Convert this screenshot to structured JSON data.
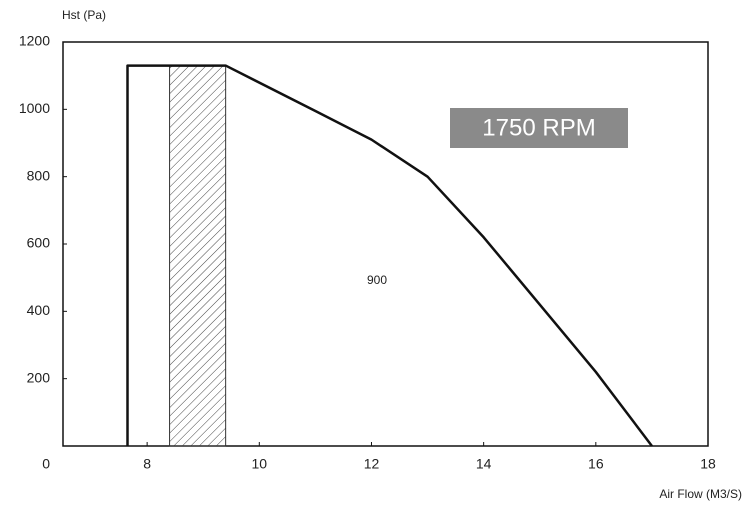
{
  "chart_data": {
    "type": "line",
    "y_label": "Hst (Pa)",
    "x_label": "Air Flow (M3/S)",
    "x": [
      7.65,
      7.65,
      9.4,
      11,
      12,
      13,
      14,
      15,
      16,
      17
    ],
    "series": [
      {
        "color": "#111111",
        "values": [
          0,
          1130,
          1130,
          995,
          910,
          800,
          620,
          420,
          220,
          0
        ]
      }
    ],
    "band": [
      8.4,
      9.4
    ],
    "annotations": [
      "1750 RPM",
      "900"
    ],
    "xlim": [
      6.5,
      18
    ],
    "xticks": [
      8,
      10,
      12,
      14,
      16,
      18
    ],
    "ylim": [
      0,
      1200
    ],
    "yticks": [
      0,
      200,
      400,
      600,
      800,
      1000,
      1200
    ],
    "grid": false
  }
}
